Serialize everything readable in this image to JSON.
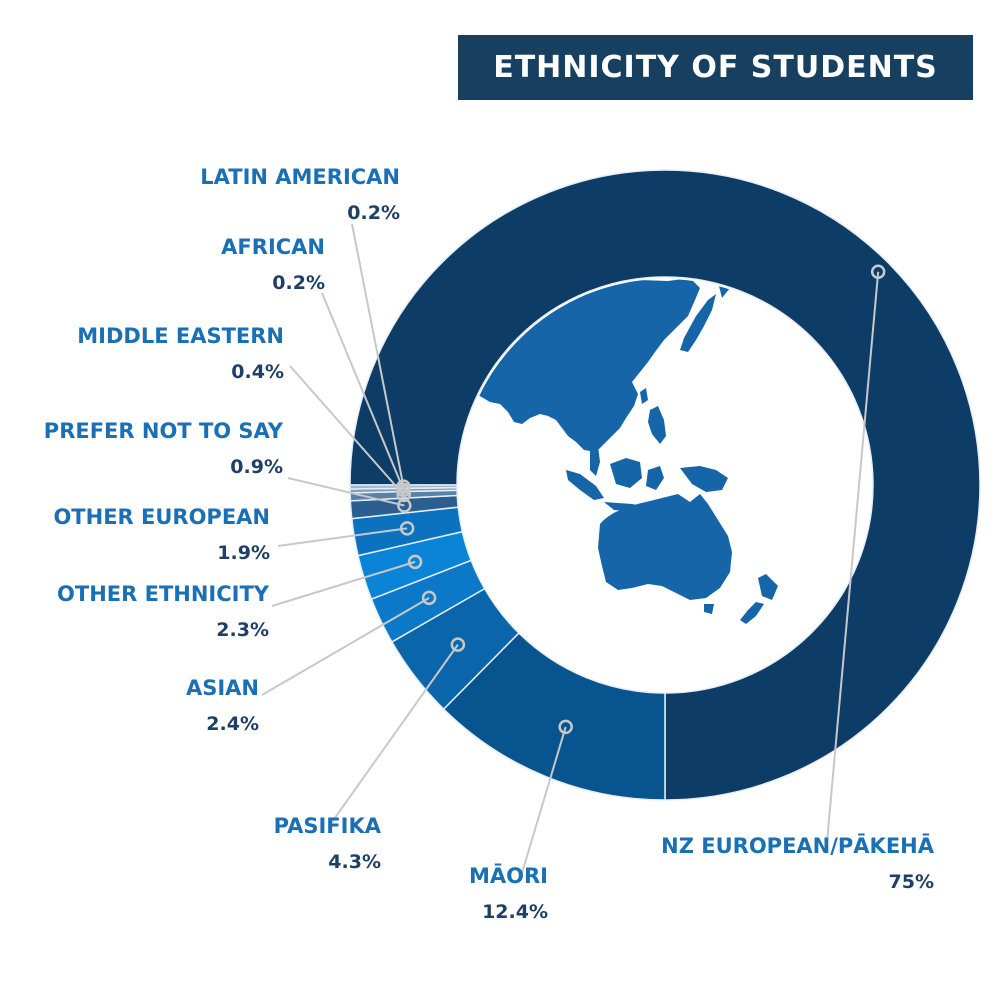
{
  "title": "ETHNICITY OF STUDENTS",
  "colors": {
    "title_bg": "#173f5f",
    "label_name": "#1a6fb5",
    "label_value": "#1f3f66",
    "leader": "#c8c8c8",
    "map_land": "#1565a8"
  },
  "chart_data": {
    "type": "pie",
    "variant": "donut",
    "title": "ETHNICITY OF STUDENTS",
    "values_unit": "%",
    "slices": [
      {
        "name": "NZ EUROPEAN/PĀKEHĀ",
        "value": 75,
        "label": "75%",
        "color": "#0d3d67"
      },
      {
        "name": "MĀORI",
        "value": 12.4,
        "label": "12.4%",
        "color": "#08548f"
      },
      {
        "name": "PASIFIKA",
        "value": 4.3,
        "label": "4.3%",
        "color": "#0b65ab"
      },
      {
        "name": "ASIAN",
        "value": 2.4,
        "label": "2.4%",
        "color": "#0b78c8"
      },
      {
        "name": "OTHER ETHNICITY",
        "value": 2.3,
        "label": "2.3%",
        "color": "#0a84d6"
      },
      {
        "name": "OTHER EUROPEAN",
        "value": 1.9,
        "label": "1.9%",
        "color": "#0b72c0"
      },
      {
        "name": "PREFER NOT TO SAY",
        "value": 0.9,
        "label": "0.9%",
        "color": "#2c5f8f"
      },
      {
        "name": "MIDDLE EASTERN",
        "value": 0.4,
        "label": "0.4%",
        "color": "#5a82a8"
      },
      {
        "name": "AFRICAN",
        "value": 0.2,
        "label": "0.2%",
        "color": "#7f9fbf"
      },
      {
        "name": "LATIN AMERICAN",
        "value": 0.2,
        "label": "0.2%",
        "color": "#a0b8d0"
      }
    ]
  }
}
